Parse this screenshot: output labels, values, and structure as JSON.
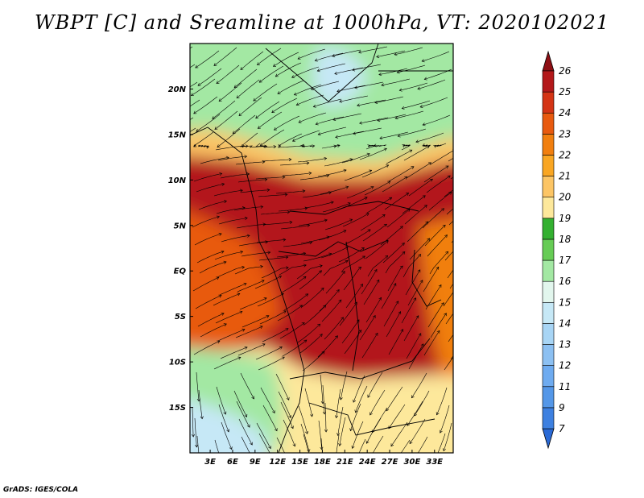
{
  "title": "WBPT [C] and Sreamline at 1000hPa, VT: 2020102021",
  "credit": "GrADS: IGES/COLA",
  "chart_data": {
    "type": "heatmap",
    "title": "WBPT [C] and Sreamline at 1000hPa, VT: 2020102021",
    "x_ticks": [
      "3E",
      "6E",
      "9E",
      "12E",
      "15E",
      "18E",
      "21E",
      "24E",
      "27E",
      "30E",
      "33E"
    ],
    "x_values": [
      3,
      6,
      9,
      12,
      15,
      18,
      21,
      24,
      27,
      30,
      33
    ],
    "y_ticks": [
      "20N",
      "15N",
      "10N",
      "5N",
      "EQ",
      "5S",
      "10S",
      "15S"
    ],
    "y_values": [
      20,
      15,
      10,
      5,
      0,
      -5,
      -10,
      -15
    ],
    "xlim": [
      0.3,
      35.5
    ],
    "ylim": [
      -20,
      25
    ],
    "colorbar": {
      "levels": [
        "7",
        "9",
        "11",
        "12",
        "13",
        "14",
        "15",
        "16",
        "17",
        "18",
        "19",
        "20",
        "21",
        "22",
        "23",
        "24",
        "25",
        "26"
      ],
      "colors": [
        "#2a6ad6",
        "#3d80e0",
        "#5497e8",
        "#6eabf0",
        "#8cc0f2",
        "#a8d5f5",
        "#c6e8f6",
        "#e2f6ed",
        "#a3e8a3",
        "#66cc55",
        "#33b030",
        "#fde89b",
        "#fcc565",
        "#f9a623",
        "#f17f0f",
        "#e85a0f",
        "#d43415",
        "#b3181a",
        "#8e0f14"
      ]
    },
    "regions": {
      "north_sahel": 16,
      "northeast_highland": 14,
      "sahel_band": 20,
      "central_africa": 25,
      "gulf_of_guinea": 23,
      "southeast_coast": 22,
      "south_interior": 19,
      "southwest_atlantic": 16,
      "far_southwest": 14
    },
    "grid": false,
    "legend": "right"
  }
}
